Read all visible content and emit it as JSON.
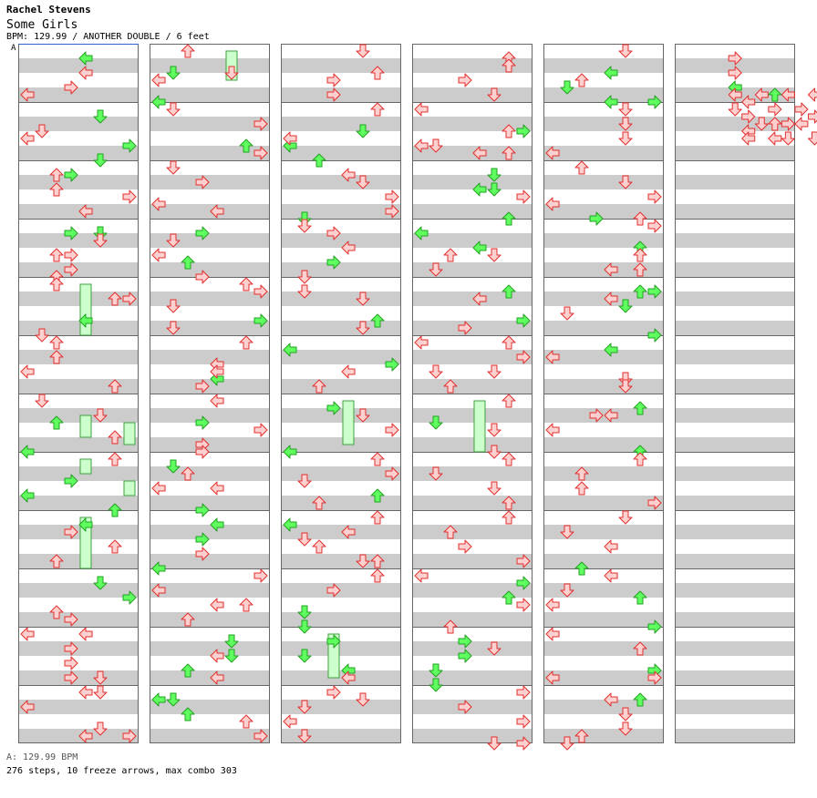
{
  "header": {
    "artist": "Rachel Stevens",
    "title": "Some Girls",
    "info": "BPM: 129.99 / ANOTHER DOUBLE / 6 feet",
    "section_marker": "A"
  },
  "footer": {
    "bpm_line": "A: 129.99 BPM",
    "stats_line": "276 steps, 10 freeze arrows, max combo 303"
  },
  "colors": {
    "stripe": "#cccccc",
    "border": "#666666",
    "arrow_red_fill": "#ffd0d0",
    "arrow_red_stroke": "#e03030",
    "arrow_green_fill": "#60ff60",
    "arrow_green_stroke": "#20a020",
    "freeze_fill": "#ccffcc",
    "freeze_stroke": "#40a040",
    "marker_line": "#3366cc"
  },
  "chart_data": {
    "type": "table",
    "columns": 6,
    "measures_per_column": 12,
    "lanes": [
      "left",
      "down",
      "up",
      "right",
      "left",
      "down",
      "up",
      "right"
    ],
    "notes": [
      [
        1,
        5,
        1,
        "r",
        "r"
      ],
      [
        1,
        5,
        3,
        "r",
        "r"
      ],
      [
        1,
        5,
        5,
        "l",
        "g"
      ],
      [
        1,
        5,
        6,
        "l",
        "r"
      ],
      [
        1,
        5,
        8,
        "d",
        "r"
      ],
      [
        1,
        6,
        1,
        "l",
        "r"
      ],
      [
        1,
        6,
        3,
        "r",
        "r"
      ],
      [
        1,
        6,
        5,
        "l",
        "r"
      ],
      [
        1,
        6,
        6,
        "l",
        "r"
      ],
      [
        1,
        7,
        0,
        "l",
        "r"
      ],
      [
        1,
        7,
        4,
        "d",
        "r"
      ],
      [
        1,
        8,
        0,
        "u",
        "g"
      ],
      [
        1,
        8,
        2,
        "r",
        "r"
      ],
      [
        1,
        8,
        4,
        "u",
        "r"
      ],
      [
        1,
        8,
        6,
        "l",
        "r"
      ],
      [
        1,
        9,
        0,
        "l",
        "r"
      ],
      [
        1,
        9,
        4,
        "r",
        "r"
      ],
      [
        1,
        9,
        6,
        "d",
        "r"
      ],
      [
        1,
        10,
        2,
        "r",
        "r"
      ],
      [
        1,
        10,
        4,
        "l",
        "r"
      ],
      [
        1,
        11,
        0,
        "l",
        "r"
      ],
      [
        1,
        11,
        3,
        "r",
        "r"
      ],
      [
        1,
        11,
        6,
        "d",
        "r"
      ],
      [
        1,
        12,
        0,
        "l",
        "g"
      ],
      [
        1,
        12,
        2,
        "l",
        "r"
      ],
      [
        1,
        12,
        6,
        "r",
        "r"
      ]
    ]
  }
}
